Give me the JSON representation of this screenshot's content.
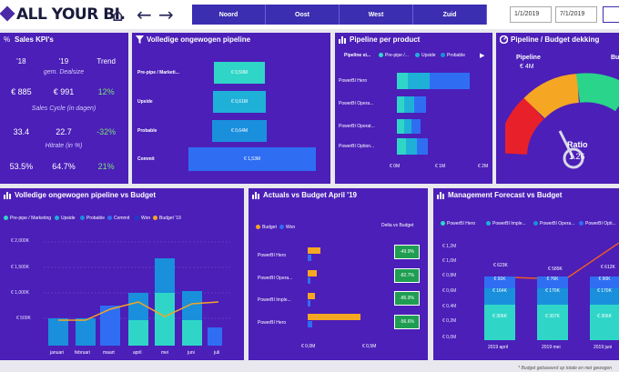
{
  "header": {
    "logo": "ALL YOUR BI.",
    "regions": [
      "Noord",
      "Oost",
      "West",
      "Zuid"
    ],
    "date_from": "1/1/2019",
    "date_to": "7/1/2019",
    "home_glyph": "⌂",
    "back_glyph": "←",
    "forward_glyph": "→"
  },
  "kpi": {
    "icon": "%",
    "title": "Sales KPI's",
    "col1": "'18",
    "col2": "'19",
    "col3": "Trend",
    "label1": "gem. Dealsize",
    "row1": [
      "€ 885",
      "€ 991",
      "12%"
    ],
    "label2": "Sales Cycle (in dagen)",
    "row2": [
      "33.4",
      "22.7",
      "-32%"
    ],
    "label3": "Hitrate (in %)",
    "row3": [
      "53.5%",
      "64.7%",
      "21%"
    ]
  },
  "funnel": {
    "title": "Volledige ongewogen pipeline",
    "stages": [
      {
        "label": "Pre-pipe / Marketi...",
        "value": "€ 0,59M"
      },
      {
        "label": "Upside",
        "value": "€ 0,61M"
      },
      {
        "label": "Probable",
        "value": "€ 0,64M"
      },
      {
        "label": "Commit",
        "value": "€ 1,53M"
      }
    ]
  },
  "pipeline_product": {
    "title": "Pipeline per product",
    "legend_title": "Pipeline st...",
    "legend": [
      "Pre-pipe /...",
      "Upside",
      "Probable"
    ],
    "more_glyph": "▶",
    "products": [
      "PowerBI Hero",
      "PowerBI Opera...",
      "PowerBI Operat...",
      "PowerBI Option..."
    ],
    "xticks": [
      "€ 0M",
      "€ 1M",
      "€ 2M"
    ]
  },
  "gauge": {
    "title": "Pipeline / Budget dekking",
    "left_label": "Pipeline",
    "left_value": "€ 4M",
    "right_label": "Bu",
    "ratio_label": "Ratio",
    "ratio_value": "1.26"
  },
  "monthly": {
    "title": "Volledige ongewogen pipeline vs Budget",
    "legend": [
      "Pre-pipe / Marketing",
      "Upside",
      "Probable",
      "Commit",
      "Won",
      "Budget '19"
    ],
    "yticks": [
      "€ 2,000K",
      "€ 1,500K",
      "€ 1,000K",
      "€ 500K"
    ],
    "months": [
      "januari",
      "februari",
      "maart",
      "april",
      "mei",
      "juni",
      "juli"
    ]
  },
  "actuals": {
    "title": "Actuals vs Budget April '19",
    "legend": [
      "Budget",
      "Won"
    ],
    "delta_title": "Delta vs Budget",
    "products": [
      "PowerBI Hero",
      "PowerBI Opera...",
      "PowerBI Imple...",
      "PowerBI Hero"
    ],
    "deltas": [
      "-49.9%",
      "-82.7%",
      "-86.9%",
      "-56.6%"
    ],
    "xticks": [
      "€ 0,0M",
      "€ 0,5M"
    ]
  },
  "forecast": {
    "title": "Management Forecast vs Budget",
    "legend": [
      "PowerBI Hero",
      "PowerBI Imple...",
      "PowerBI Opera...",
      "PowerBI Opti..."
    ],
    "yticks": [
      "€ 1,2M",
      "€ 1,0M",
      "€ 0,8M",
      "€ 0,6M",
      "€ 0,4M",
      "€ 0,2M",
      "€ 0,0M"
    ],
    "columns": [
      {
        "label": "2019 april",
        "total": "€ 623K",
        "seg1": "€ 91K",
        "seg2": "€ 164K",
        "seg3": "€ 306K"
      },
      {
        "label": "2019 mei",
        "total": "€ 589K",
        "seg1": "€ 76K",
        "seg2": "€ 170K",
        "seg3": "€ 307K"
      },
      {
        "label": "2019 juni",
        "total": "€ 612K",
        "seg1": "€ 90K",
        "seg2": "€ 170K",
        "seg3": "€ 306K"
      }
    ],
    "footnote": "* Budget gebaseerd op totale en niet gewogen"
  }
}
